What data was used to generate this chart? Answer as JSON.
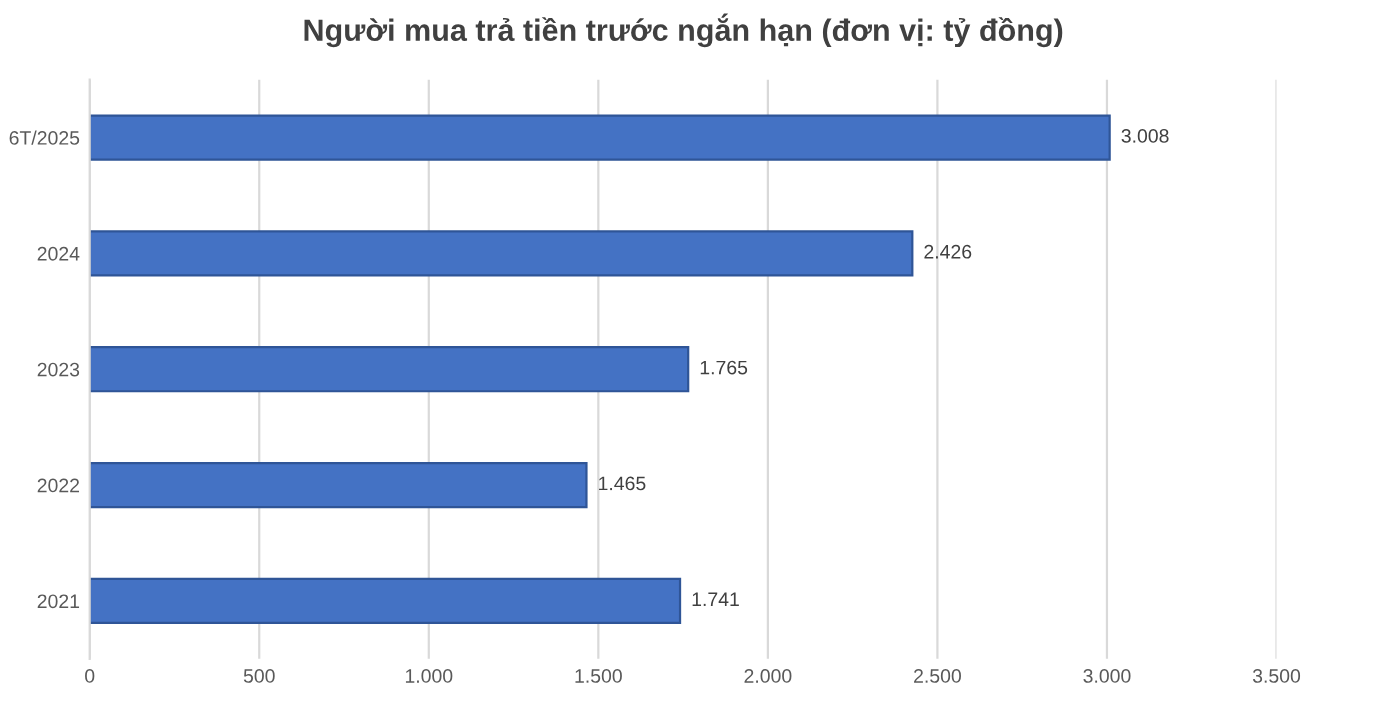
{
  "chart_data": {
    "type": "bar",
    "orientation": "horizontal",
    "title": "Người mua trả tiền trước ngắn hạn (đơn vị: tỷ đồng)",
    "categories": [
      "6T/2025",
      "2024",
      "2023",
      "2022",
      "2021"
    ],
    "values": [
      3008,
      2426,
      1765,
      1465,
      1741
    ],
    "value_labels": [
      "3.008",
      "2.426",
      "1.765",
      "1.465",
      "1.741"
    ],
    "color": "#4472c4",
    "xlim": [
      0,
      3500
    ],
    "xticks": [
      0,
      500,
      {
        "value": 1000,
        "label": "1.000"
      },
      {
        "value": 1500,
        "label": "1.500"
      },
      {
        "value": 2000,
        "label": "2.000"
      },
      {
        "value": 2500,
        "label": "2.500"
      },
      {
        "value": 3000,
        "label": "3.000"
      },
      {
        "value": 3500,
        "label": "3.500"
      }
    ],
    "grid": "x",
    "legend": false
  }
}
